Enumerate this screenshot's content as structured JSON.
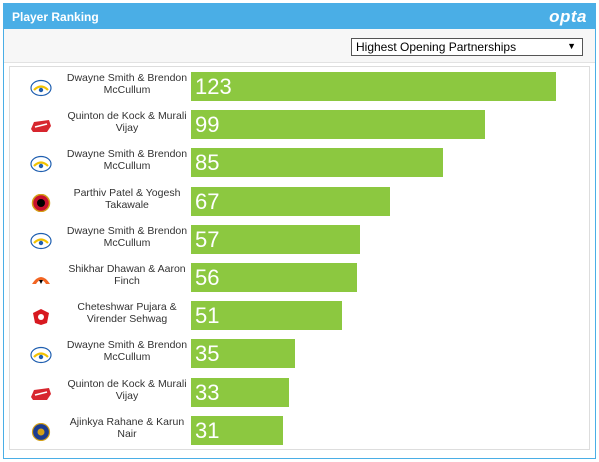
{
  "header": {
    "title": "Player Ranking",
    "brand": "opta"
  },
  "toolbar": {
    "selected": "Highest Opening Partnerships"
  },
  "colors": {
    "header": "#4aaee6",
    "bar": "#8cc840"
  },
  "chart_data": {
    "type": "bar",
    "orientation": "horizontal",
    "title": "",
    "categories": [
      "Dwayne Smith & Brendon McCullum",
      "Quinton de Kock & Murali Vijay",
      "Dwayne Smith & Brendon McCullum",
      "Parthiv Patel & Yogesh Takawale",
      "Dwayne Smith & Brendon McCullum",
      "Shikhar Dhawan & Aaron Finch",
      "Cheteshwar Pujara & Virender Sehwag",
      "Dwayne Smith & Brendon McCullum",
      "Quinton de Kock & Murali Vijay",
      "Ajinkya Rahane & Karun Nair"
    ],
    "values": [
      123,
      99,
      85,
      67,
      57,
      56,
      51,
      35,
      33,
      31
    ],
    "team_icons": [
      "chennai-super-kings-logo-icon",
      "delhi-daredevils-logo-icon",
      "chennai-super-kings-logo-icon",
      "royal-challengers-bangalore-logo-icon",
      "chennai-super-kings-logo-icon",
      "sunrisers-hyderabad-logo-icon",
      "kings-xi-punjab-logo-icon",
      "chennai-super-kings-logo-icon",
      "delhi-daredevils-logo-icon",
      "rajasthan-royals-logo-icon"
    ],
    "xlim": [
      0,
      123
    ]
  }
}
